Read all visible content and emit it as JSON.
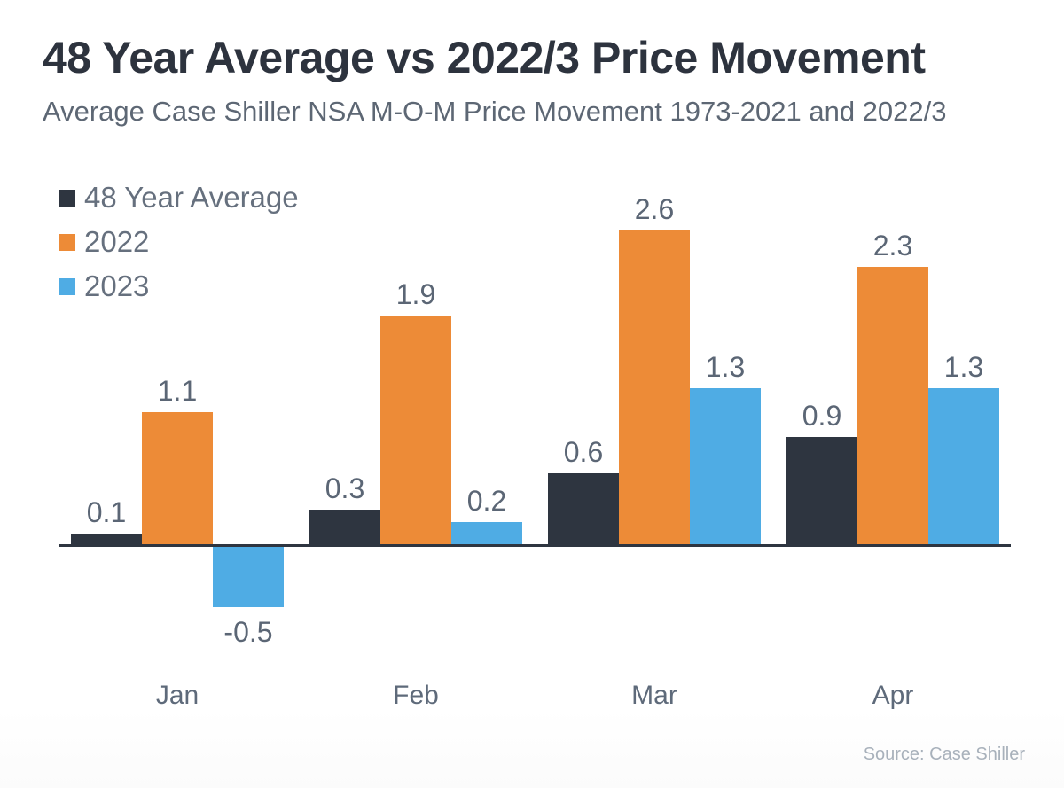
{
  "chart_data": {
    "type": "bar",
    "title": "48 Year Average vs 2022/3 Price Movement",
    "subtitle": "Average Case Shiller NSA M-O-M Price Movement 1973-2021 and 2022/3",
    "categories": [
      "Jan",
      "Feb",
      "Mar",
      "Apr"
    ],
    "series": [
      {
        "name": "48 Year Average",
        "color": "#2e3540",
        "values": [
          0.1,
          0.3,
          0.6,
          0.9
        ]
      },
      {
        "name": "2022",
        "color": "#ed8b37",
        "values": [
          1.1,
          1.9,
          2.6,
          2.3
        ]
      },
      {
        "name": "2023",
        "color": "#4face4",
        "values": [
          -0.5,
          0.2,
          1.3,
          1.3
        ]
      }
    ],
    "data_labels": true,
    "legend_position": "top-left",
    "grid": false,
    "y_axis_visible": false,
    "x_axis_visible": true,
    "ylim": [
      -0.75,
      3.0
    ]
  },
  "colors": {
    "title_text": "#2d333e",
    "subtitle_text": "#5d6774",
    "legend_text": "#66707e",
    "data_label_text": "#5b6675",
    "month_label_text": "#5e6a7a",
    "axis_line": "#2e3540",
    "source_text": "#a8b1bb",
    "background": "#ffffff"
  },
  "source": "Source: Case Shiller"
}
